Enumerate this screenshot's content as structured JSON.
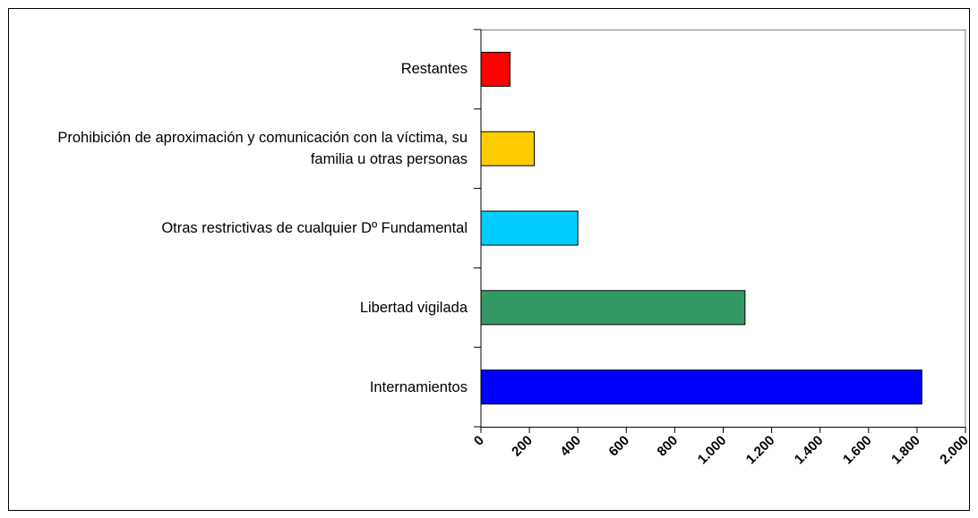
{
  "chart_data": {
    "type": "bar",
    "orientation": "horizontal",
    "categories": [
      "Internamientos",
      "Libertad vigilada",
      "Otras restrictivas de cualquier Dº Fundamental",
      "Prohibición de aproximación y comunicación con la víctima, su familia u otras personas",
      "Restantes"
    ],
    "values": [
      1820,
      1090,
      400,
      220,
      120
    ],
    "colors": [
      "#0000ff",
      "#339966",
      "#00ccff",
      "#ffcc00",
      "#ff0000"
    ],
    "xlim": [
      0,
      2000
    ],
    "xticks": [
      0,
      200,
      400,
      600,
      800,
      {
        "value": 1000,
        "label": "1.000"
      },
      {
        "value": 1200,
        "label": "1.200"
      },
      {
        "value": 1400,
        "label": "1.400"
      },
      {
        "value": 1600,
        "label": "1.600"
      },
      {
        "value": 1800,
        "label": "1.800"
      },
      {
        "value": 2000,
        "label": "2.000"
      }
    ],
    "grid": false
  }
}
